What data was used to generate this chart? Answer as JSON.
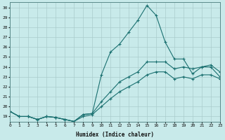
{
  "xlabel": "Humidex (Indice chaleur)",
  "background_color": "#c8eaea",
  "grid_color": "#aacccc",
  "line_color": "#1a7070",
  "xlim": [
    0,
    23
  ],
  "ylim": [
    18.5,
    30.5
  ],
  "yticks": [
    19,
    20,
    21,
    22,
    23,
    24,
    25,
    26,
    27,
    28,
    29,
    30
  ],
  "xticks": [
    0,
    1,
    2,
    3,
    4,
    5,
    6,
    7,
    8,
    9,
    10,
    11,
    12,
    13,
    14,
    15,
    16,
    17,
    18,
    19,
    20,
    21,
    22,
    23
  ],
  "line1_x": [
    0,
    1,
    2,
    3,
    4,
    5,
    6,
    7,
    8,
    9,
    10,
    11,
    12,
    13,
    14,
    15,
    16,
    17,
    18,
    19,
    20,
    21,
    22,
    23
  ],
  "line1_y": [
    19.5,
    19.0,
    19.0,
    18.7,
    19.0,
    18.9,
    18.7,
    18.5,
    19.2,
    19.3,
    23.2,
    25.5,
    26.3,
    27.5,
    28.7,
    30.2,
    29.2,
    26.5,
    24.8,
    24.8,
    23.3,
    24.0,
    24.0,
    23.0
  ],
  "line2_x": [
    0,
    1,
    2,
    3,
    4,
    5,
    6,
    7,
    8,
    9,
    10,
    11,
    12,
    13,
    14,
    15,
    16,
    17,
    18,
    19,
    20,
    21,
    22,
    23
  ],
  "line2_y": [
    19.5,
    19.0,
    19.0,
    18.7,
    19.0,
    18.9,
    18.7,
    18.5,
    19.2,
    19.3,
    20.5,
    21.5,
    22.5,
    23.0,
    23.5,
    24.5,
    24.5,
    24.5,
    23.8,
    24.0,
    23.8,
    24.0,
    24.2,
    23.5
  ],
  "line3_x": [
    0,
    1,
    2,
    3,
    4,
    5,
    6,
    7,
    8,
    9,
    10,
    11,
    12,
    13,
    14,
    15,
    16,
    17,
    18,
    19,
    20,
    21,
    22,
    23
  ],
  "line3_y": [
    19.5,
    19.0,
    19.0,
    18.7,
    19.0,
    18.9,
    18.7,
    18.5,
    19.0,
    19.2,
    20.0,
    20.8,
    21.5,
    22.0,
    22.5,
    23.2,
    23.5,
    23.5,
    22.8,
    23.0,
    22.8,
    23.2,
    23.2,
    22.8
  ]
}
